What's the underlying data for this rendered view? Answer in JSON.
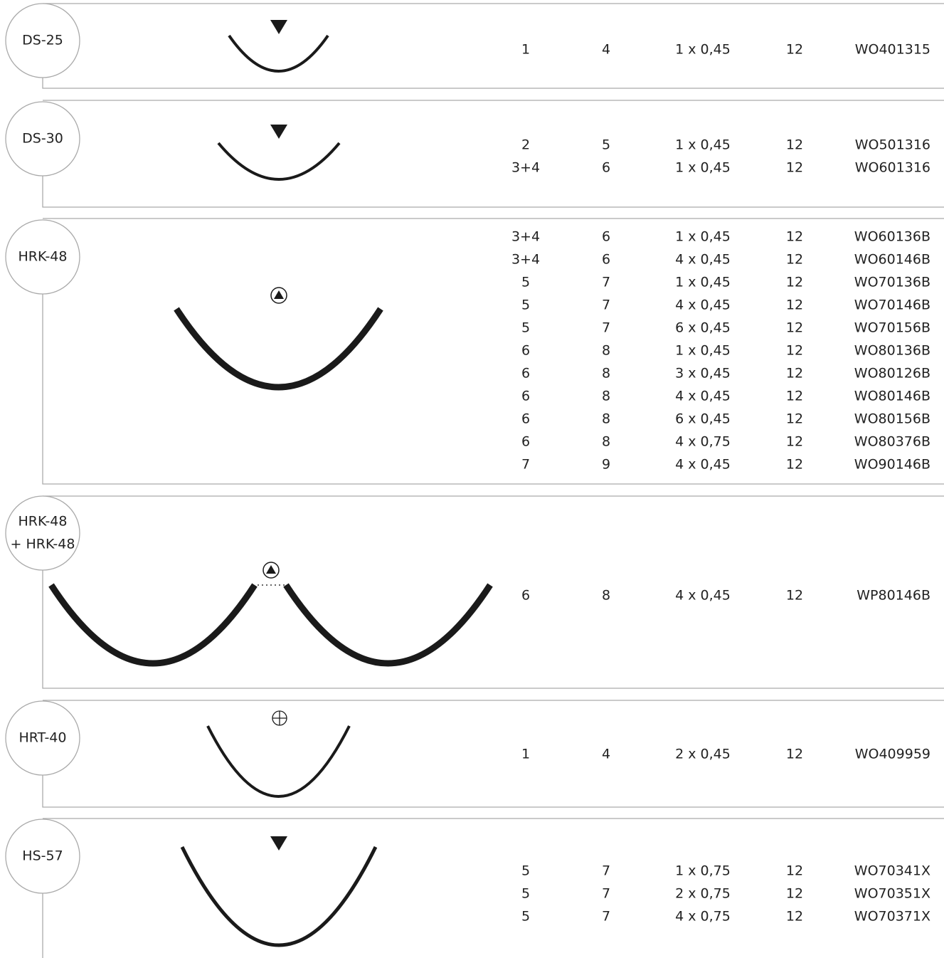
{
  "sections": [
    {
      "label": [
        "DS-25"
      ],
      "rows": [
        [
          "1",
          "4",
          "1 x 0,45",
          "12",
          "WO401315"
        ]
      ]
    },
    {
      "label": [
        "DS-30"
      ],
      "rows": [
        [
          "2",
          "5",
          "1 x 0,45",
          "12",
          "WO501316"
        ],
        [
          "3+4",
          "6",
          "1 x 0,45",
          "12",
          "WO601316"
        ]
      ]
    },
    {
      "label": [
        "HRK-48"
      ],
      "rows": [
        [
          "3+4",
          "6",
          "1 x 0,45",
          "12",
          "WO60136B"
        ],
        [
          "3+4",
          "6",
          "4 x 0,45",
          "12",
          "WO60146B"
        ],
        [
          "5",
          "7",
          "1 x 0,45",
          "12",
          "WO70136B"
        ],
        [
          "5",
          "7",
          "4 x 0,45",
          "12",
          "WO70146B"
        ],
        [
          "5",
          "7",
          "6 x 0,45",
          "12",
          "WO70156B"
        ],
        [
          "6",
          "8",
          "1 x 0,45",
          "12",
          "WO80136B"
        ],
        [
          "6",
          "8",
          "3 x 0,45",
          "12",
          "WO80126B"
        ],
        [
          "6",
          "8",
          "4 x 0,45",
          "12",
          "WO80146B"
        ],
        [
          "6",
          "8",
          "6 x 0,45",
          "12",
          "WO80156B"
        ],
        [
          "6",
          "8",
          "4 x 0,75",
          "12",
          "WO80376B"
        ],
        [
          "7",
          "9",
          "4 x 0,45",
          "12",
          "WO90146B"
        ]
      ]
    },
    {
      "label": [
        "HRK-48",
        "+ HRK-48"
      ],
      "rows": [
        [
          "6",
          "8",
          "4 x 0,45",
          "12",
          "WP80146B"
        ]
      ]
    },
    {
      "label": [
        "HRT-40"
      ],
      "rows": [
        [
          "1",
          "4",
          "2 x 0,45",
          "12",
          "WO409959"
        ]
      ]
    },
    {
      "label": [
        "HS-57"
      ],
      "rows": [
        [
          "5",
          "7",
          "1 x 0,75",
          "12",
          "WO70341X"
        ],
        [
          "5",
          "7",
          "2 x 0,75",
          "12",
          "WO70351X"
        ],
        [
          "5",
          "7",
          "4 x 0,75",
          "12",
          "WO70371X"
        ]
      ]
    }
  ]
}
